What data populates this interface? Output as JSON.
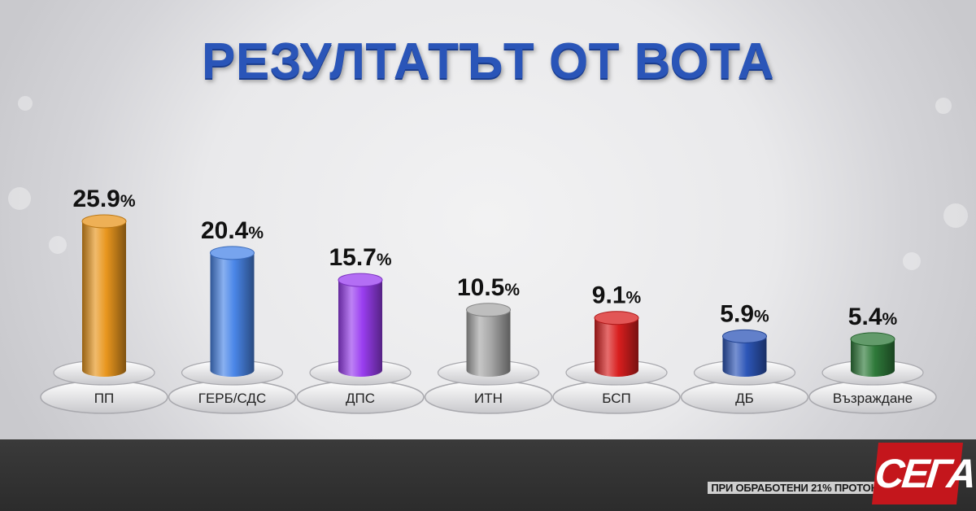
{
  "title": "РЕЗУЛТАТЪТ ОТ ВОТА",
  "footnote": "ПРИ ОБРАБОТЕНИ 21% ПРОТОКОЛИ",
  "logo": "СЕГА",
  "chart_data": {
    "type": "bar",
    "title": "РЕЗУЛТАТЪТ ОТ ВОТА",
    "categories": [
      "ПП",
      "ГЕРБ/СДС",
      "ДПС",
      "ИТН",
      "БСП",
      "ДБ",
      "Възраждане"
    ],
    "values": [
      25.9,
      20.4,
      15.7,
      10.5,
      9.1,
      5.9,
      5.4
    ],
    "value_labels": [
      "25.9",
      "20.4",
      "15.7",
      "10.5",
      "9.1",
      "5.9",
      "5.4"
    ],
    "unit": "%",
    "colors": [
      "#e8961e",
      "#4a86e8",
      "#9a3ef0",
      "#a8a8a8",
      "#d81e1e",
      "#2d56b8",
      "#2f7a3a"
    ],
    "ylim": [
      0,
      25.9
    ],
    "grid": false,
    "legend": "none"
  }
}
